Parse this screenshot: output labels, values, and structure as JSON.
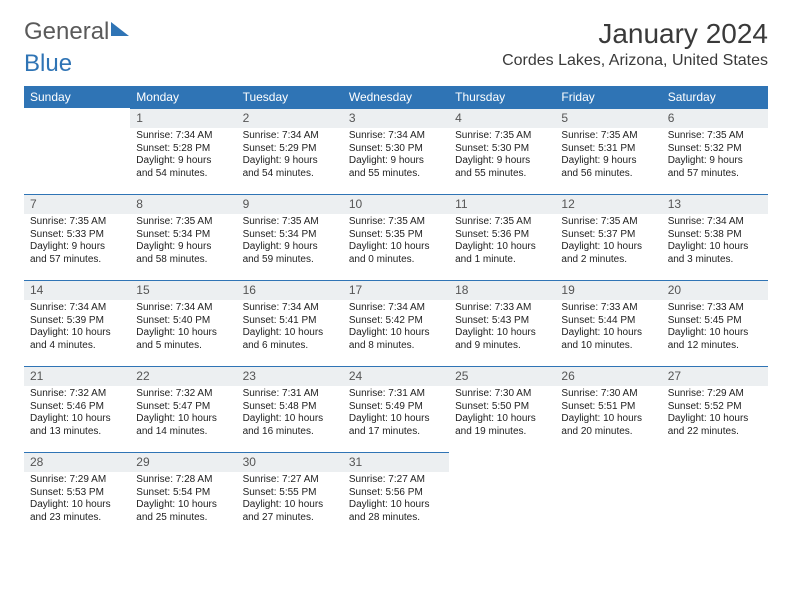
{
  "brand": {
    "part1": "General",
    "part2": "Blue"
  },
  "title": "January 2024",
  "location": "Cordes Lakes, Arizona, United States",
  "colors": {
    "header_bg": "#2f74b5",
    "header_text": "#ffffff",
    "daynum_bg": "#eceff1",
    "body_text": "#222222",
    "page_bg": "#ffffff"
  },
  "weekdays": [
    "Sunday",
    "Monday",
    "Tuesday",
    "Wednesday",
    "Thursday",
    "Friday",
    "Saturday"
  ],
  "first_day_index": 1,
  "days": [
    {
      "n": 1,
      "sunrise": "7:34 AM",
      "sunset": "5:28 PM",
      "daylight": "9 hours and 54 minutes."
    },
    {
      "n": 2,
      "sunrise": "7:34 AM",
      "sunset": "5:29 PM",
      "daylight": "9 hours and 54 minutes."
    },
    {
      "n": 3,
      "sunrise": "7:34 AM",
      "sunset": "5:30 PM",
      "daylight": "9 hours and 55 minutes."
    },
    {
      "n": 4,
      "sunrise": "7:35 AM",
      "sunset": "5:30 PM",
      "daylight": "9 hours and 55 minutes."
    },
    {
      "n": 5,
      "sunrise": "7:35 AM",
      "sunset": "5:31 PM",
      "daylight": "9 hours and 56 minutes."
    },
    {
      "n": 6,
      "sunrise": "7:35 AM",
      "sunset": "5:32 PM",
      "daylight": "9 hours and 57 minutes."
    },
    {
      "n": 7,
      "sunrise": "7:35 AM",
      "sunset": "5:33 PM",
      "daylight": "9 hours and 57 minutes."
    },
    {
      "n": 8,
      "sunrise": "7:35 AM",
      "sunset": "5:34 PM",
      "daylight": "9 hours and 58 minutes."
    },
    {
      "n": 9,
      "sunrise": "7:35 AM",
      "sunset": "5:34 PM",
      "daylight": "9 hours and 59 minutes."
    },
    {
      "n": 10,
      "sunrise": "7:35 AM",
      "sunset": "5:35 PM",
      "daylight": "10 hours and 0 minutes."
    },
    {
      "n": 11,
      "sunrise": "7:35 AM",
      "sunset": "5:36 PM",
      "daylight": "10 hours and 1 minute."
    },
    {
      "n": 12,
      "sunrise": "7:35 AM",
      "sunset": "5:37 PM",
      "daylight": "10 hours and 2 minutes."
    },
    {
      "n": 13,
      "sunrise": "7:34 AM",
      "sunset": "5:38 PM",
      "daylight": "10 hours and 3 minutes."
    },
    {
      "n": 14,
      "sunrise": "7:34 AM",
      "sunset": "5:39 PM",
      "daylight": "10 hours and 4 minutes."
    },
    {
      "n": 15,
      "sunrise": "7:34 AM",
      "sunset": "5:40 PM",
      "daylight": "10 hours and 5 minutes."
    },
    {
      "n": 16,
      "sunrise": "7:34 AM",
      "sunset": "5:41 PM",
      "daylight": "10 hours and 6 minutes."
    },
    {
      "n": 17,
      "sunrise": "7:34 AM",
      "sunset": "5:42 PM",
      "daylight": "10 hours and 8 minutes."
    },
    {
      "n": 18,
      "sunrise": "7:33 AM",
      "sunset": "5:43 PM",
      "daylight": "10 hours and 9 minutes."
    },
    {
      "n": 19,
      "sunrise": "7:33 AM",
      "sunset": "5:44 PM",
      "daylight": "10 hours and 10 minutes."
    },
    {
      "n": 20,
      "sunrise": "7:33 AM",
      "sunset": "5:45 PM",
      "daylight": "10 hours and 12 minutes."
    },
    {
      "n": 21,
      "sunrise": "7:32 AM",
      "sunset": "5:46 PM",
      "daylight": "10 hours and 13 minutes."
    },
    {
      "n": 22,
      "sunrise": "7:32 AM",
      "sunset": "5:47 PM",
      "daylight": "10 hours and 14 minutes."
    },
    {
      "n": 23,
      "sunrise": "7:31 AM",
      "sunset": "5:48 PM",
      "daylight": "10 hours and 16 minutes."
    },
    {
      "n": 24,
      "sunrise": "7:31 AM",
      "sunset": "5:49 PM",
      "daylight": "10 hours and 17 minutes."
    },
    {
      "n": 25,
      "sunrise": "7:30 AM",
      "sunset": "5:50 PM",
      "daylight": "10 hours and 19 minutes."
    },
    {
      "n": 26,
      "sunrise": "7:30 AM",
      "sunset": "5:51 PM",
      "daylight": "10 hours and 20 minutes."
    },
    {
      "n": 27,
      "sunrise": "7:29 AM",
      "sunset": "5:52 PM",
      "daylight": "10 hours and 22 minutes."
    },
    {
      "n": 28,
      "sunrise": "7:29 AM",
      "sunset": "5:53 PM",
      "daylight": "10 hours and 23 minutes."
    },
    {
      "n": 29,
      "sunrise": "7:28 AM",
      "sunset": "5:54 PM",
      "daylight": "10 hours and 25 minutes."
    },
    {
      "n": 30,
      "sunrise": "7:27 AM",
      "sunset": "5:55 PM",
      "daylight": "10 hours and 27 minutes."
    },
    {
      "n": 31,
      "sunrise": "7:27 AM",
      "sunset": "5:56 PM",
      "daylight": "10 hours and 28 minutes."
    }
  ],
  "labels": {
    "sunrise": "Sunrise:",
    "sunset": "Sunset:",
    "daylight": "Daylight:"
  }
}
